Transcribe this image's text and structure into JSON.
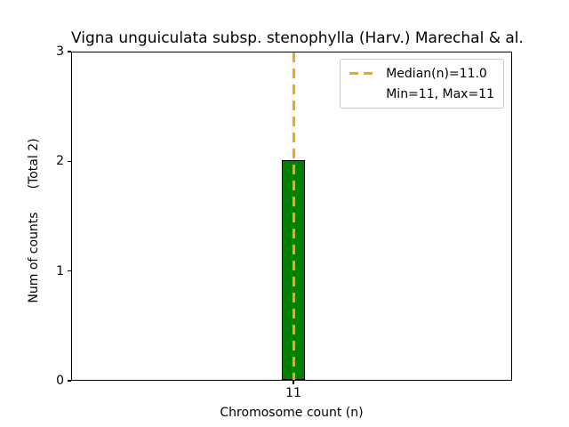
{
  "chart_data": {
    "type": "bar",
    "title": "Vigna unguiculata subsp. stenophylla (Harv.) Marechal & al.",
    "xlabel": "Chromosome count (n)",
    "ylabel": "Num of counts",
    "ylabel_annotation": "(Total 2)",
    "categories": [
      "11"
    ],
    "values": [
      2
    ],
    "total_counts": 2,
    "ylim": [
      0,
      3
    ],
    "yticks": [
      0,
      1,
      2,
      3
    ],
    "bar_color": "#008000",
    "bar_edge_color": "#000000",
    "median_line": {
      "value": 11.0,
      "color": "#ffa500",
      "style": "dashed"
    },
    "legend": {
      "position": "upper right",
      "entries": [
        {
          "label": "Median(n)=11.0",
          "symbol": "orange-dashed-line"
        },
        {
          "label": "Min=11, Max=11",
          "symbol": null
        }
      ]
    }
  }
}
